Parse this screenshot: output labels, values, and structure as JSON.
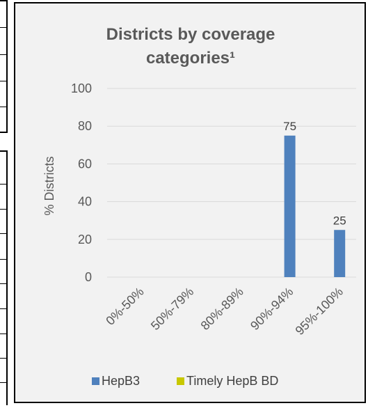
{
  "chart_data": {
    "type": "bar",
    "title": "Districts by coverage categories¹",
    "title_lines": [
      "Districts by coverage",
      "categories¹"
    ],
    "ylabel": "% Districts",
    "xlabel": "",
    "ylim": [
      0,
      100
    ],
    "yticks": [
      "0",
      "20",
      "40",
      "60",
      "80",
      "100"
    ],
    "categories": [
      "0%-50%",
      "50%-79%",
      "80%-89%",
      "90%-94%",
      "95%-100%"
    ],
    "series": [
      {
        "name": "HepB3",
        "color": "#4f81bd",
        "values": [
          0,
          0,
          0,
          75,
          25
        ]
      },
      {
        "name": "Timely HepB BD",
        "color": "#c8c800",
        "values": [
          0,
          0,
          0,
          0,
          0
        ]
      }
    ],
    "data_labels": [
      "",
      "",
      "",
      "75",
      "25"
    ],
    "grid": true,
    "legend": "bottom"
  }
}
